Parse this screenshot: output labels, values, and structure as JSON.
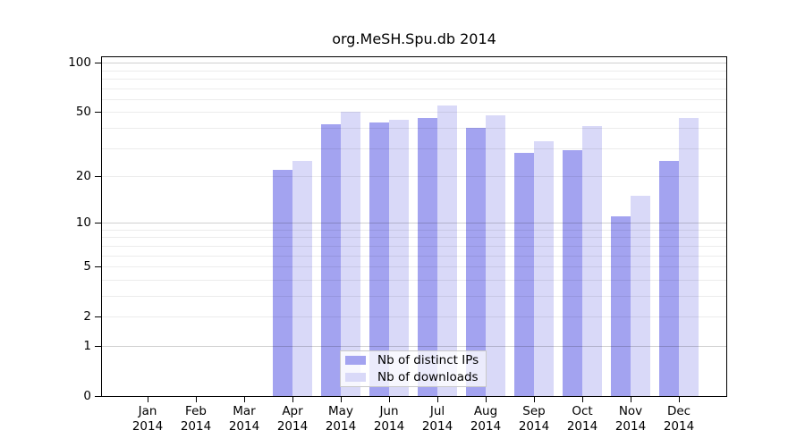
{
  "chart_data": {
    "type": "bar",
    "title": "org.MeSH.Spu.db 2014",
    "categories": [
      "Jan",
      "Feb",
      "Mar",
      "Apr",
      "May",
      "Jun",
      "Jul",
      "Aug",
      "Sep",
      "Oct",
      "Nov",
      "Dec"
    ],
    "year_label": "2014",
    "series": [
      {
        "name": "Nb of distinct IPs",
        "color": "#a3a3f0",
        "values": [
          0,
          0,
          0,
          22,
          42,
          43,
          46,
          40,
          28,
          29,
          11,
          25
        ]
      },
      {
        "name": "Nb of downloads",
        "color": "#d9d9f8",
        "values": [
          0,
          0,
          0,
          25,
          50,
          45,
          55,
          48,
          33,
          41,
          15,
          46
        ]
      }
    ],
    "y_ticks": [
      0,
      1,
      2,
      5,
      10,
      20,
      50,
      100
    ],
    "grid_major": [
      1,
      10,
      100
    ],
    "grid_minor": [
      2,
      3,
      4,
      5,
      6,
      7,
      8,
      9,
      20,
      30,
      40,
      50,
      60,
      70,
      80,
      90
    ],
    "y_scale": "log10(1+x)",
    "ylim": [
      0,
      105
    ],
    "legend_position": "bottom-center",
    "grid": "horizontal-on"
  },
  "colors": {
    "axis": "#000000",
    "grid_major": "rgba(0,0,0,0.18)",
    "grid_minor": "rgba(0,0,0,0.075)",
    "legend_border": "#c9c9c9",
    "legend_bg": "rgba(255,255,255,0.78)"
  }
}
